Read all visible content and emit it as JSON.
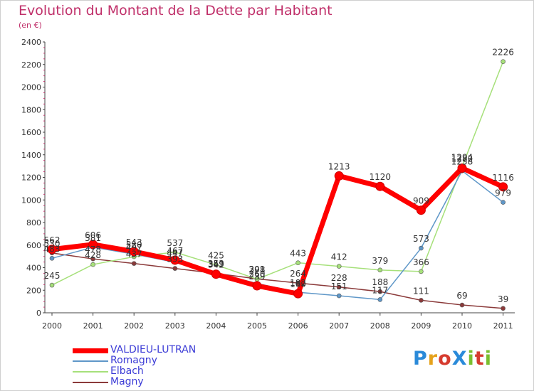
{
  "title": "Evolution du Montant de la Dette par Habitant",
  "subtitle": "(en €)",
  "logo_text": "ProXiti",
  "logo_colors": [
    "#2a8ad9",
    "#e5a21c",
    "#d63b2f",
    "#2a8ad9",
    "#7abf2f",
    "#d63b2f",
    "#7abf2f"
  ],
  "chart_data": {
    "type": "line",
    "title": "Evolution du Montant de la Dette par Habitant",
    "subtitle": "(en €)",
    "x": [
      "2000",
      "2001",
      "2002",
      "2003",
      "2004",
      "2005",
      "2006",
      "2007",
      "2008",
      "2009",
      "2010",
      "2011"
    ],
    "ylim": [
      0,
      2400
    ],
    "yticks": [
      0,
      200,
      400,
      600,
      800,
      1000,
      1200,
      1400,
      1600,
      1800,
      2000,
      2200,
      2400
    ],
    "grid": false,
    "legend_position": "bottom-left",
    "series": [
      {
        "name": "VALDIEU-LUTRAN",
        "color": "#ff0000",
        "values": [
          562,
          606,
          543,
          467,
          342,
          239,
          169,
          1213,
          1120,
          909,
          1282,
          1116
        ],
        "labels": [
          "562",
          "606",
          "543",
          "467",
          "342",
          "239",
          "169",
          "1213",
          "1120",
          "909",
          "1282",
          "1116"
        ]
      },
      {
        "name": "Romagny",
        "color": "#5f97c8",
        "values": [
          483,
          581,
          520,
          447,
          353,
          260,
          182,
          151,
          117,
          573,
          1258,
          979
        ],
        "labels": [
          "483",
          "581",
          "520",
          "447",
          "353",
          "260",
          "182",
          "151",
          "117",
          "573",
          "1258",
          "979"
        ]
      },
      {
        "name": "Elbach",
        "color": "#a6e07a",
        "values": [
          245,
          428,
          497,
          537,
          425,
          298,
          443,
          412,
          379,
          366,
          1294,
          2226
        ],
        "labels": [
          "245",
          "428",
          "497",
          "537",
          "425",
          "298",
          "443",
          "412",
          "379",
          "366",
          "1294",
          "2226"
        ]
      },
      {
        "name": "Magny",
        "color": "#8b3a3a",
        "values": [
          530,
          478,
          437,
          393,
          349,
          301,
          264,
          228,
          188,
          111,
          69,
          39
        ],
        "labels": [
          "530",
          "478",
          "437",
          "393",
          "349",
          "301",
          "264",
          "228",
          "188",
          "111",
          "69",
          "39"
        ]
      }
    ]
  }
}
